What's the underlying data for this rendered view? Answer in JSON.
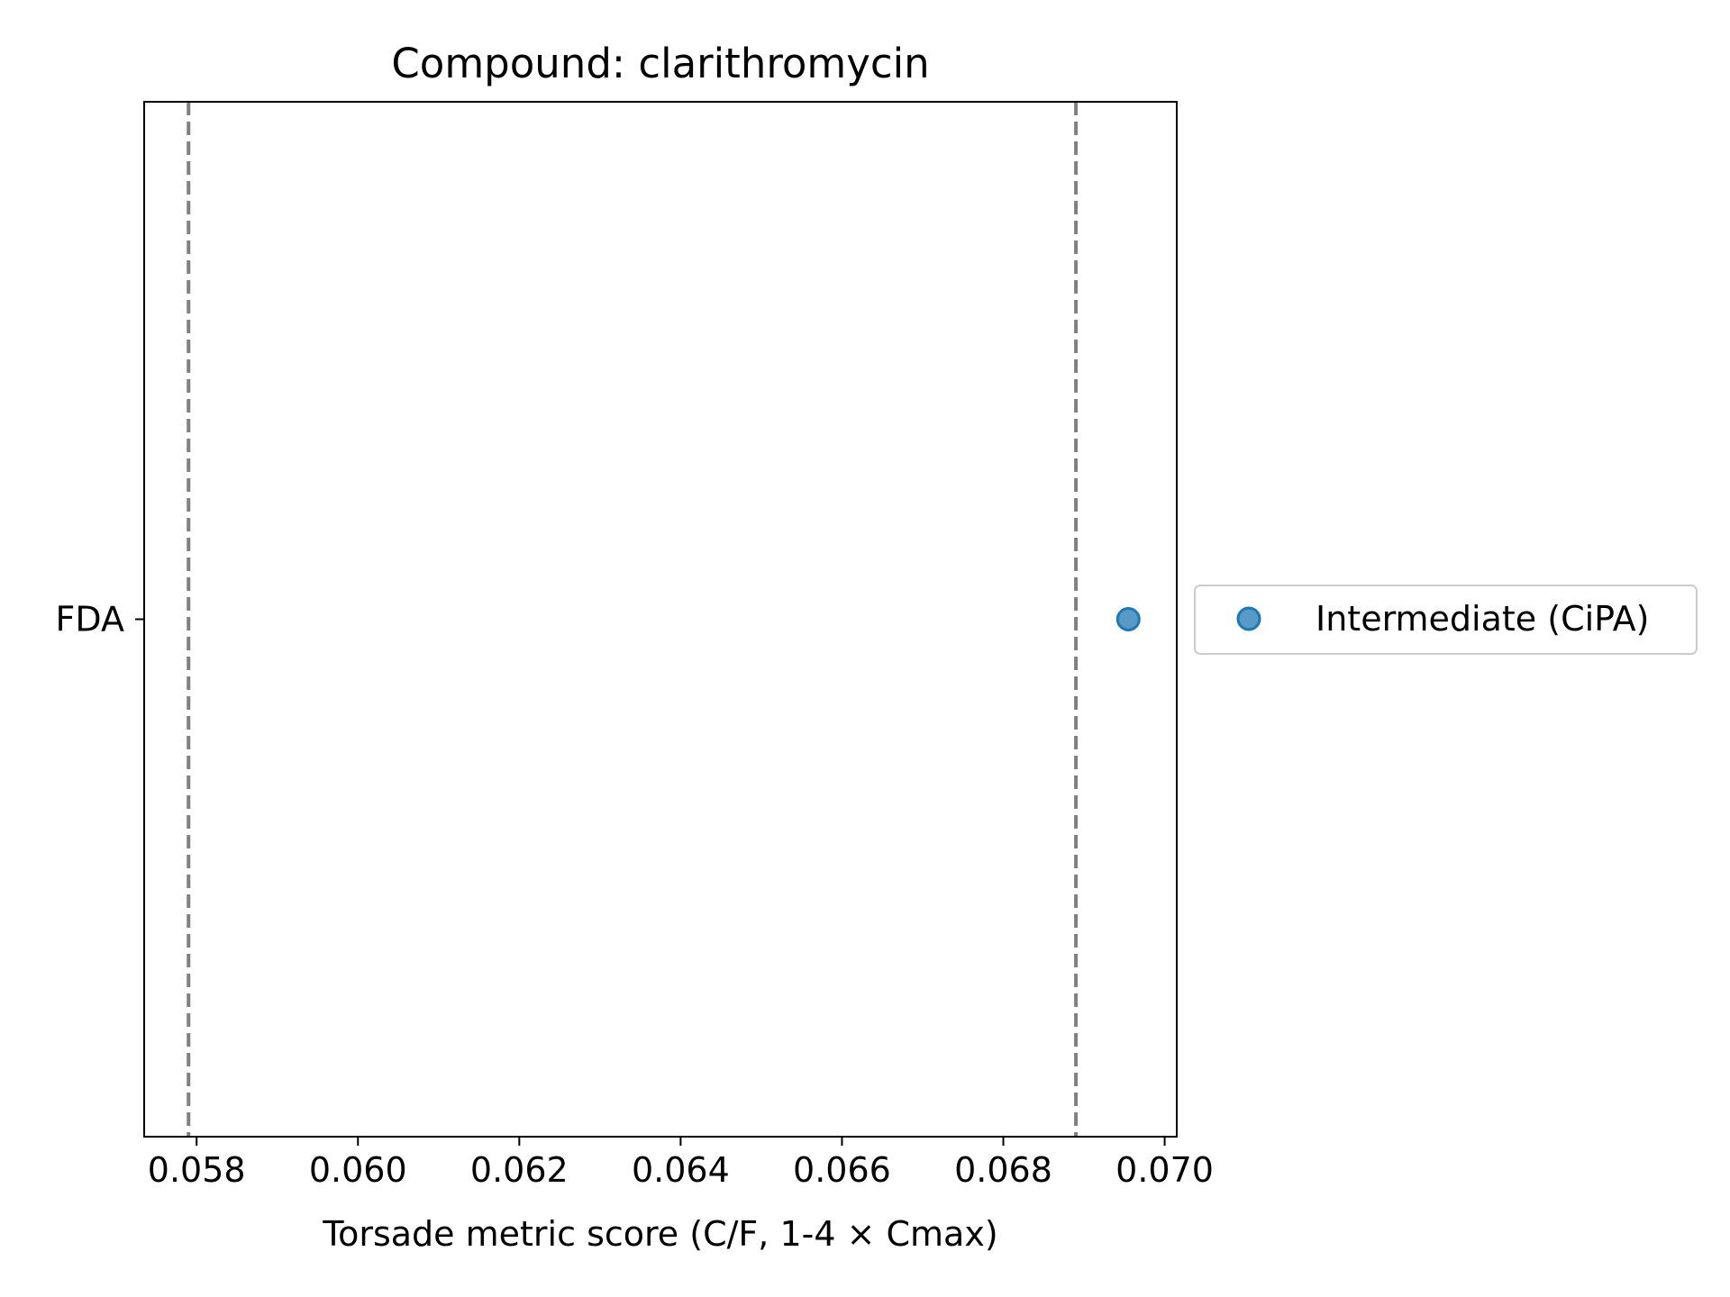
{
  "chart_data": {
    "type": "scatter",
    "title": "Compound: clarithromycin",
    "xlabel": "Torsade metric score (C/F, 1-4 × Cmax)",
    "ylabel": "",
    "xlim": [
      0.05735,
      0.07015
    ],
    "x_ticks": [
      "0.058",
      "0.060",
      "0.062",
      "0.064",
      "0.066",
      "0.068",
      "0.070"
    ],
    "x_tick_values": [
      0.058,
      0.06,
      0.062,
      0.064,
      0.066,
      0.068,
      0.07
    ],
    "categories": [
      "FDA"
    ],
    "series": [
      {
        "name": "Intermediate (CiPA)",
        "color": "#1f77b4",
        "points": [
          {
            "x": 0.06955,
            "y": "FDA"
          }
        ]
      }
    ],
    "reference_lines": [
      {
        "x": 0.0579,
        "style": "dashed",
        "color": "#808080"
      },
      {
        "x": 0.0689,
        "style": "dashed",
        "color": "#808080"
      }
    ],
    "grid": false,
    "legend_position": "outside-right"
  }
}
